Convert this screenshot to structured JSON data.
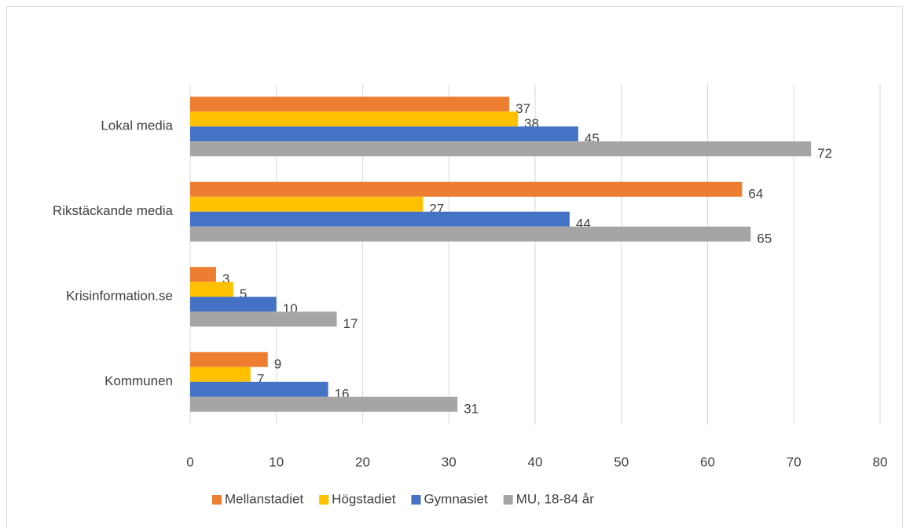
{
  "chart_data": {
    "type": "hbar",
    "categories": [
      "Lokal media",
      "Rikstäckande media",
      "Krisinformation.se",
      "Kommunen"
    ],
    "series": [
      {
        "name": "Mellanstadiet",
        "color": "#ED7D31",
        "values": [
          37,
          64,
          3,
          9
        ]
      },
      {
        "name": "Högstadiet",
        "color": "#FFC000",
        "values": [
          38,
          27,
          5,
          7
        ]
      },
      {
        "name": "Gymnasiet",
        "color": "#4472C4",
        "values": [
          45,
          44,
          10,
          16
        ]
      },
      {
        "name": "MU, 18-84 år",
        "color": "#A5A5A5",
        "values": [
          72,
          65,
          17,
          31
        ]
      }
    ],
    "xlim": [
      0,
      80
    ],
    "xticks": [
      0,
      10,
      20,
      30,
      40,
      50,
      60,
      70,
      80
    ],
    "grid": true,
    "legend": "bottom"
  }
}
